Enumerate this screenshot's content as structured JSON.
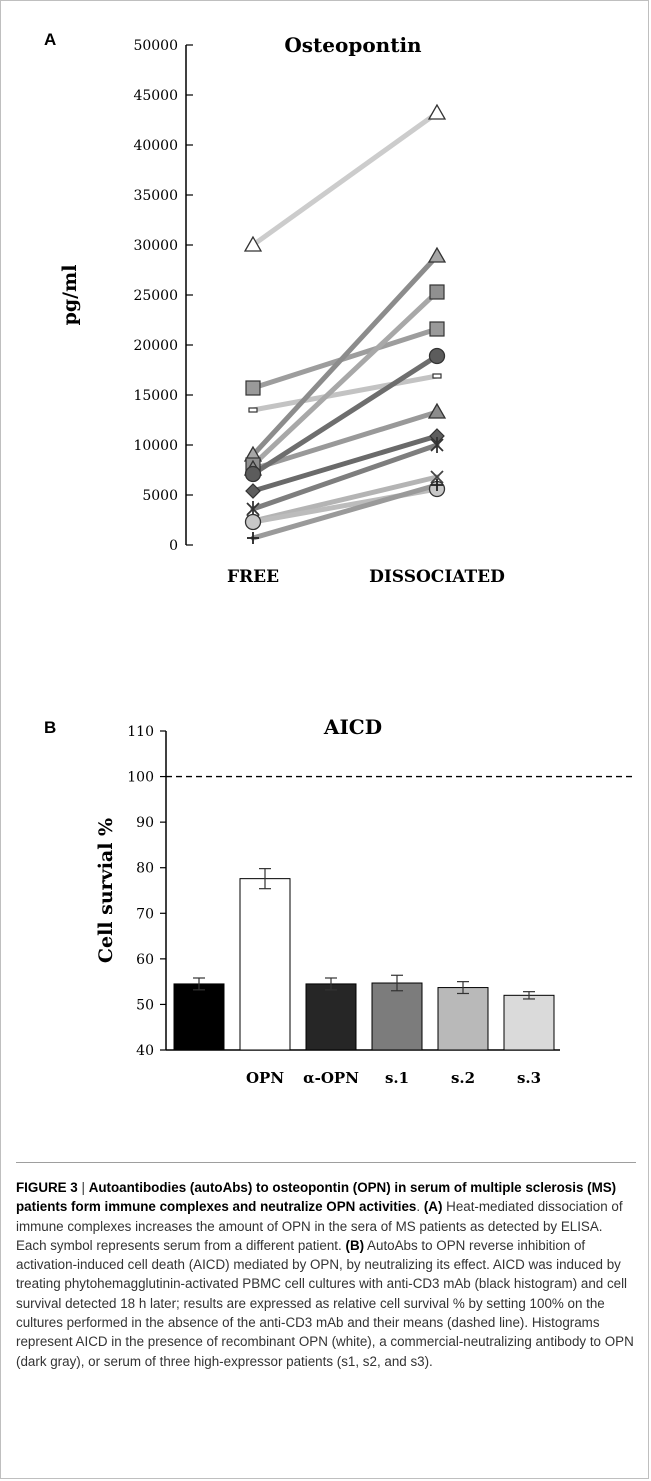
{
  "figure": {
    "panel_a_letter": "A",
    "panel_b_letter": "B"
  },
  "chart_data": [
    {
      "type": "line",
      "title": "Osteopontin",
      "xlabel": "",
      "ylabel": "pg/ml",
      "categories": [
        "FREE",
        "DISSOCIATED"
      ],
      "ylim": [
        0,
        50000
      ],
      "yticks": [
        0,
        5000,
        10000,
        15000,
        20000,
        25000,
        30000,
        35000,
        40000,
        45000,
        50000
      ],
      "grid": false,
      "series": [
        {
          "values": [
            30000,
            43200
          ],
          "marker": "triangle",
          "line_color": "#cccccc",
          "marker_color": "#ffffff"
        },
        {
          "values": [
            15700,
            21600
          ],
          "marker": "square",
          "line_color": "#9d9d9d",
          "marker_color": "#9a9a9a"
        },
        {
          "values": [
            13500,
            16900
          ],
          "marker": "dash",
          "line_color": "#c3c3c3",
          "marker_color": "#ffffff"
        },
        {
          "values": [
            9000,
            28900
          ],
          "marker": "triangle",
          "line_color": "#8c8c8c",
          "marker_color": "#a6a6a6"
        },
        {
          "values": [
            8000,
            25300
          ],
          "marker": "square",
          "line_color": "#a8a8a8",
          "marker_color": "#909090"
        },
        {
          "values": [
            7600,
            13300
          ],
          "marker": "triangle",
          "line_color": "#999999",
          "marker_color": "#8c8c8c"
        },
        {
          "values": [
            7100,
            18900
          ],
          "marker": "circle",
          "line_color": "#6e6e6e",
          "marker_color": "#5c5c5c"
        },
        {
          "values": [
            5400,
            10900
          ],
          "marker": "diamond",
          "line_color": "#6a6a6a",
          "marker_color": "#5e5e5e"
        },
        {
          "values": [
            3600,
            10000
          ],
          "marker": "star",
          "line_color": "#7e7e7e",
          "marker_color": "#333333"
        },
        {
          "values": [
            2400,
            6800
          ],
          "marker": "x",
          "line_color": "#b4b4b4",
          "marker_color": "#444444"
        },
        {
          "values": [
            2300,
            5600
          ],
          "marker": "circle",
          "line_color": "#bcbcbc",
          "marker_color": "#c8c8c8"
        },
        {
          "values": [
            700,
            6000
          ],
          "marker": "plus",
          "line_color": "#9a9a9a",
          "marker_color": "#222222"
        }
      ]
    },
    {
      "type": "bar",
      "title": "AICD",
      "xlabel": "",
      "ylabel": "Cell survial %",
      "categories": [
        "",
        "OPN",
        "α-OPN",
        "s.1",
        "s.2",
        "s.3"
      ],
      "values": [
        54.5,
        77.6,
        54.5,
        54.7,
        53.7,
        52.0
      ],
      "errors": [
        1.3,
        2.2,
        1.3,
        1.7,
        1.3,
        0.8
      ],
      "colors": [
        "#000000",
        "#ffffff",
        "#262626",
        "#7c7c7c",
        "#b9b9b9",
        "#dadada"
      ],
      "ylim": [
        40,
        110
      ],
      "yticks": [
        40,
        50,
        60,
        70,
        80,
        90,
        100,
        110
      ],
      "reference_line": 100,
      "grid": false
    }
  ],
  "caption": {
    "label": "FIGURE 3",
    "separator": " | ",
    "title": "Autoantibodies (autoAbs) to osteopontin (OPN) in serum of multiple sclerosis (MS) patients form immune complexes and neutralize OPN activities",
    "title_end": ".",
    "a_label": "(A)",
    "a_text": " Heat-mediated dissociation of immune complexes increases the amount of OPN in the sera of MS patients as detected by ELISA. Each symbol represents serum from a different patient.",
    "b_label": "(B)",
    "b_text": " AutoAbs to OPN reverse inhibition of activation-induced cell death (AICD) mediated by OPN, by neutralizing its effect. AICD was induced by treating phytohemagglutinin-activated PBMC cell cultures with anti-CD3 mAb (black histogram) and cell survival detected 18 h later; results are expressed as relative cell survival % by setting 100% on the cultures performed in the absence of the anti-CD3 mAb and their means (dashed line). Histograms represent AICD in the presence of recombinant OPN (white), a commercial-neutralizing antibody to OPN (dark gray), or serum of three high-expressor patients (s1, s2, and s3)."
  }
}
